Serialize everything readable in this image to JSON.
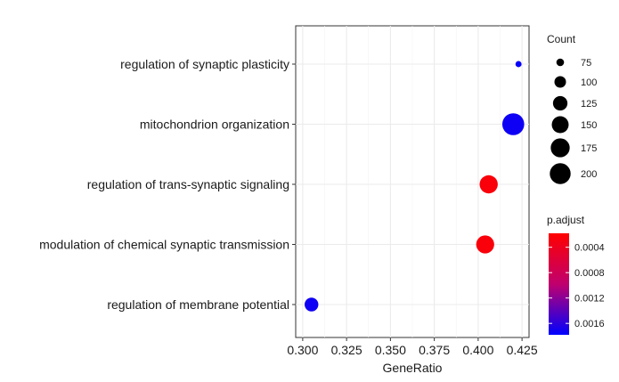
{
  "chart_data": {
    "type": "scatter",
    "xlabel": "GeneRatio",
    "ylabel": "",
    "xlim": [
      0.296,
      0.429
    ],
    "x_ticks": [
      "0.300",
      "0.325",
      "0.350",
      "0.375",
      "0.400",
      "0.425"
    ],
    "x_tick_values": [
      0.3,
      0.325,
      0.35,
      0.375,
      0.4,
      0.425
    ],
    "categories": [
      "regulation of synaptic plasticity",
      "mitochondrion organization",
      "regulation of trans-synaptic signaling",
      "modulation of chemical synaptic transmission",
      "regulation of membrane potential"
    ],
    "points": [
      {
        "term": "regulation of synaptic plasticity",
        "gene_ratio": 0.423,
        "count": 68,
        "p_adjust": 0.00175
      },
      {
        "term": "mitochondrion organization",
        "gene_ratio": 0.42,
        "count": 215,
        "p_adjust": 0.00172
      },
      {
        "term": "regulation of trans-synaptic signaling",
        "gene_ratio": 0.406,
        "count": 165,
        "p_adjust": 0.00025
      },
      {
        "term": "modulation of chemical synaptic transmission",
        "gene_ratio": 0.404,
        "count": 163,
        "p_adjust": 0.00025
      },
      {
        "term": "regulation of membrane potential",
        "gene_ratio": 0.305,
        "count": 118,
        "p_adjust": 0.00172
      }
    ],
    "legend_size": {
      "title": "Count",
      "values": [
        75,
        100,
        125,
        150,
        175,
        200
      ],
      "labels": [
        "75",
        "100",
        "125",
        "150",
        "175",
        "200"
      ]
    },
    "legend_color": {
      "title": "p.adjust",
      "range": [
        0.00018,
        0.00178
      ],
      "low_color": "#ff0000",
      "high_color": "#0000ff",
      "tick_values": [
        0.0004,
        0.0008,
        0.0012,
        0.0016
      ],
      "tick_labels": [
        "0.0004",
        "0.0008",
        "0.0012",
        "0.0016"
      ]
    },
    "grid": true,
    "legend_placement": "right"
  }
}
